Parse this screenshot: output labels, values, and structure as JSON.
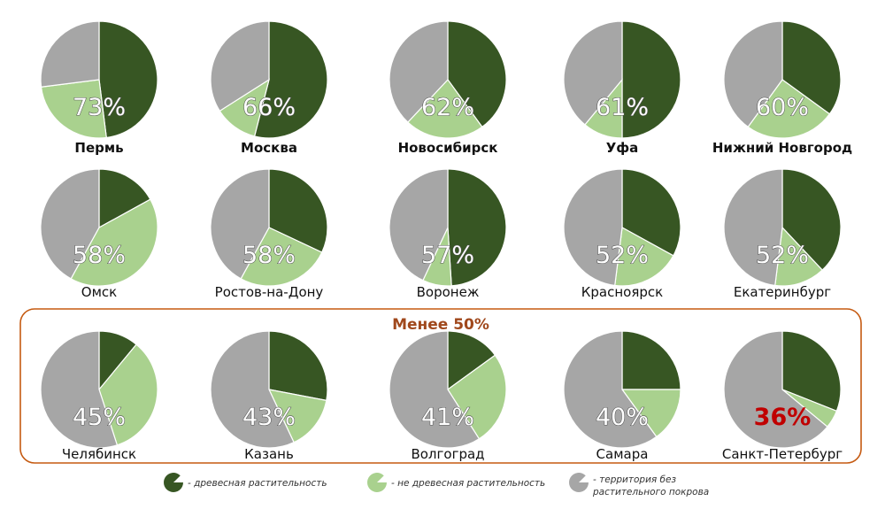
{
  "chart_data": {
    "type": "pie",
    "group_title": "Менее 50%",
    "colors": {
      "tree": "#375623",
      "non_tree": "#a9d18e",
      "bare": "#a6a6a6",
      "group_frame": "#c55a11",
      "highlight": "#c00000"
    },
    "legend": [
      {
        "key": "tree",
        "label": "- древесная растительность"
      },
      {
        "key": "non_tree",
        "label": "- не древесная растительность"
      },
      {
        "key": "bare",
        "label": "- территория без",
        "label2": "растительного покрова"
      }
    ],
    "cities": [
      {
        "name": "Пермь",
        "percent_label": "73%",
        "tree": 48,
        "non_tree": 25,
        "bare": 27,
        "bold": true
      },
      {
        "name": "Москва",
        "percent_label": "66%",
        "tree": 54,
        "non_tree": 12,
        "bare": 34,
        "bold": true
      },
      {
        "name": "Новосибирск",
        "percent_label": "62%",
        "tree": 40,
        "non_tree": 22,
        "bare": 38,
        "bold": true
      },
      {
        "name": "Уфа",
        "percent_label": "61%",
        "tree": 50,
        "non_tree": 11,
        "bare": 39,
        "bold": true
      },
      {
        "name": "Нижний Новгород",
        "percent_label": "60%",
        "tree": 35,
        "non_tree": 25,
        "bare": 40,
        "bold": true
      },
      {
        "name": "Омск",
        "percent_label": "58%",
        "tree": 17,
        "non_tree": 41,
        "bare": 42
      },
      {
        "name": "Ростов-на-Дону",
        "percent_label": "58%",
        "tree": 32,
        "non_tree": 26,
        "bare": 42
      },
      {
        "name": "Воронеж",
        "percent_label": "57%",
        "tree": 49,
        "non_tree": 8,
        "bare": 43
      },
      {
        "name": "Красноярск",
        "percent_label": "52%",
        "tree": 33,
        "non_tree": 19,
        "bare": 48
      },
      {
        "name": "Екатеринбург",
        "percent_label": "52%",
        "tree": 38,
        "non_tree": 14,
        "bare": 48
      },
      {
        "name": "Челябинск",
        "percent_label": "45%",
        "tree": 11,
        "non_tree": 34,
        "bare": 55
      },
      {
        "name": "Казань",
        "percent_label": "43%",
        "tree": 28,
        "non_tree": 15,
        "bare": 57
      },
      {
        "name": "Волгоград",
        "percent_label": "41%",
        "tree": 15,
        "non_tree": 26,
        "bare": 59
      },
      {
        "name": "Самара",
        "percent_label": "40%",
        "tree": 25,
        "non_tree": 15,
        "bare": 60
      },
      {
        "name": "Санкт-Петербург",
        "percent_label": "36%",
        "tree": 31,
        "non_tree": 5,
        "bare": 64,
        "highlight": true
      }
    ]
  }
}
